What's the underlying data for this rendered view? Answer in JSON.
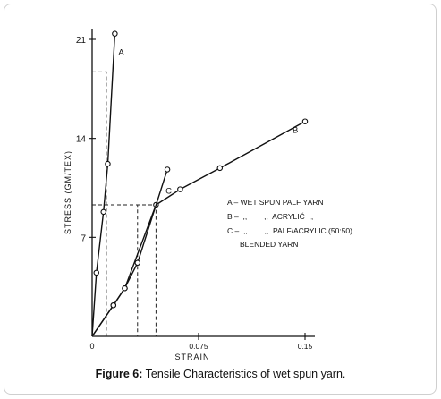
{
  "chart_data": {
    "type": "line",
    "xlabel": "STRAIN",
    "ylabel": "STRESS (GM/TEX)",
    "xlim": [
      0,
      0.15
    ],
    "ylim": [
      0,
      21
    ],
    "x_ticks": [
      {
        "value": 0.075,
        "label": "0.075"
      },
      {
        "value": 0.15,
        "label": "0.15"
      }
    ],
    "y_ticks": [
      {
        "value": 7,
        "label": "7"
      },
      {
        "value": 14,
        "label": "14"
      },
      {
        "value": 21,
        "label": "21"
      }
    ],
    "origin_label": "0",
    "series": [
      {
        "name": "A",
        "points": [
          [
            0,
            0
          ],
          [
            0.003,
            4.5
          ],
          [
            0.008,
            8.8
          ],
          [
            0.011,
            12.2
          ],
          [
            0.016,
            21.4
          ]
        ]
      },
      {
        "name": "B",
        "points": [
          [
            0,
            0
          ],
          [
            0.015,
            2.2
          ],
          [
            0.023,
            3.4
          ],
          [
            0.045,
            9.3
          ],
          [
            0.062,
            10.4
          ],
          [
            0.09,
            11.9
          ],
          [
            0.15,
            15.2
          ]
        ]
      },
      {
        "name": "C",
        "points": [
          [
            0,
            0
          ],
          [
            0.015,
            2.2
          ],
          [
            0.023,
            3.4
          ],
          [
            0.032,
            5.2
          ],
          [
            0.053,
            11.8
          ]
        ]
      }
    ],
    "reference_lines": [
      {
        "label": "A",
        "x": 0.01,
        "y": 18.7
      },
      {
        "label": "B",
        "x": 0.045,
        "y": 9.3
      },
      {
        "label": "C",
        "x": 0.032,
        "y": 9.3
      }
    ],
    "legend": {
      "placement": "right",
      "entries": [
        "A – WET SPUN PALF YARN",
        "B –  ,,        ,,  ACRYLIĆ  ,,",
        "C –  ,,        ,,  PALF/ACRYLIC (50:50)",
        "BLENDED YARN"
      ]
    }
  },
  "caption": {
    "label": "Figure 6:",
    "text": " Tensile Characteristics of wet spun yarn."
  }
}
